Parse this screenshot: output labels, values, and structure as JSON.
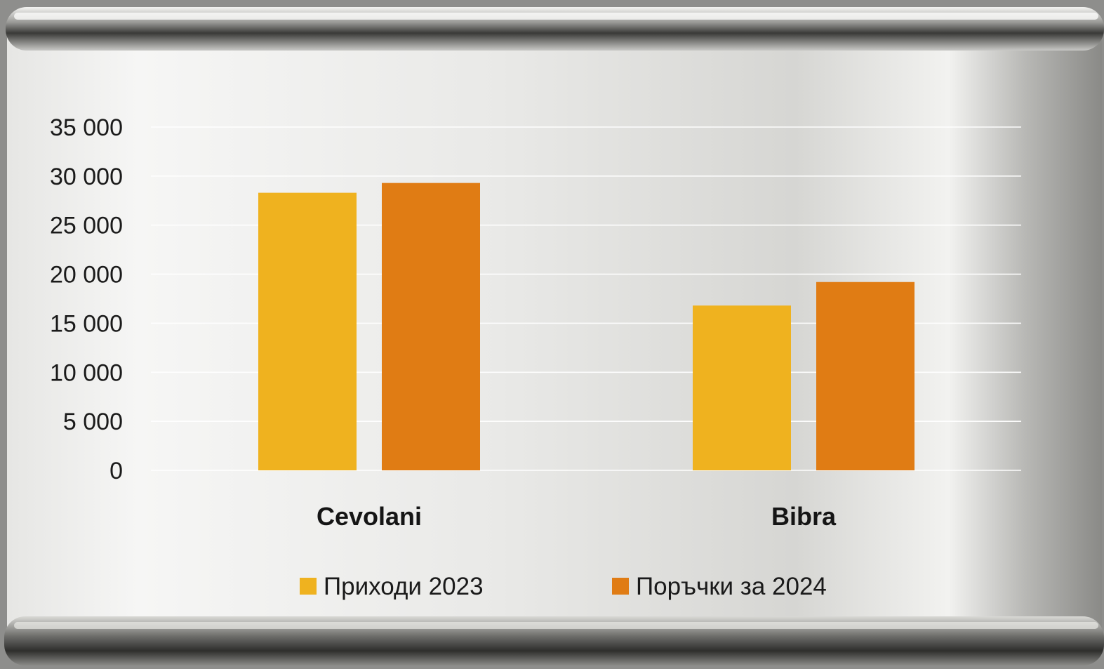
{
  "chart_data": {
    "type": "bar",
    "categories": [
      "Cevolani",
      "Bibra"
    ],
    "series": [
      {
        "name": "Приходи 2023",
        "color": "#efb21f",
        "values": [
          28300,
          16800
        ]
      },
      {
        "name": "Поръчки за 2024",
        "color": "#e07c14",
        "values": [
          29300,
          19200
        ]
      }
    ],
    "ylim": [
      0,
      35000
    ],
    "y_ticks": [
      0,
      5000,
      10000,
      15000,
      20000,
      25000,
      30000,
      35000
    ],
    "y_tick_labels": [
      "0",
      "5 000",
      "10 000",
      "15 000",
      "20 000",
      "25 000",
      "30 000",
      "35 000"
    ],
    "grid": true,
    "legend_position": "bottom",
    "title": "",
    "xlabel": "",
    "ylabel": ""
  }
}
